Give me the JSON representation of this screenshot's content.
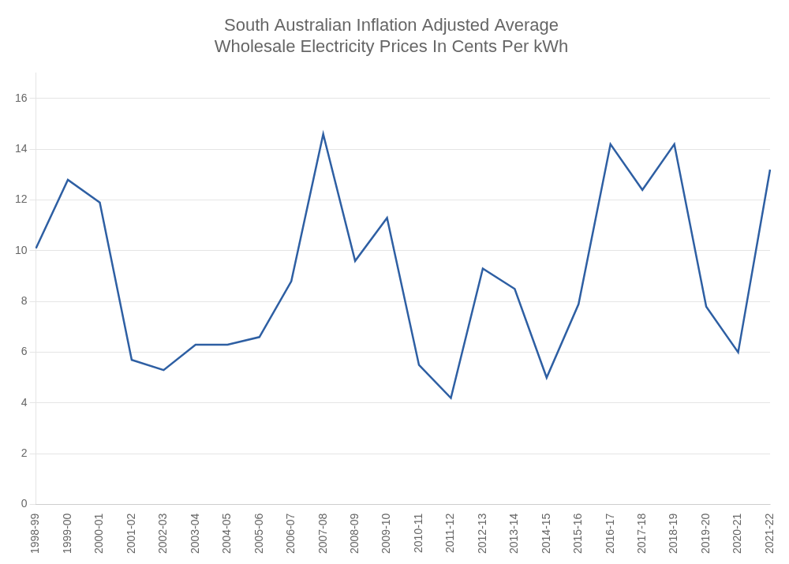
{
  "chart_data": {
    "type": "line",
    "title": "South Australian Inflation Adjusted Average\nWholesale Electricity Prices In Cents Per kWh",
    "categories": [
      "1998-99",
      "1999-00",
      "2000-01",
      "2001-02",
      "2002-03",
      "2003-04",
      "2004-05",
      "2005-06",
      "2006-07",
      "2007-08",
      "2008-09",
      "2009-10",
      "2010-11",
      "2011-12",
      "2012-13",
      "2013-14",
      "2014-15",
      "2015-16",
      "2016-17",
      "2017-18",
      "2018-19",
      "2019-20",
      "2020-21",
      "2021-22"
    ],
    "values": [
      10.1,
      12.8,
      11.9,
      5.7,
      5.3,
      6.3,
      6.3,
      6.6,
      8.8,
      14.6,
      9.6,
      11.3,
      5.5,
      4.2,
      9.3,
      8.5,
      5.0,
      7.9,
      14.2,
      12.4,
      14.2,
      7.8,
      6.0,
      13.2
    ],
    "color": "#2e5fa3",
    "ylim": [
      0,
      17
    ],
    "yticks": [
      0,
      2,
      4,
      6,
      8,
      10,
      12,
      14,
      16
    ],
    "grid": true
  }
}
